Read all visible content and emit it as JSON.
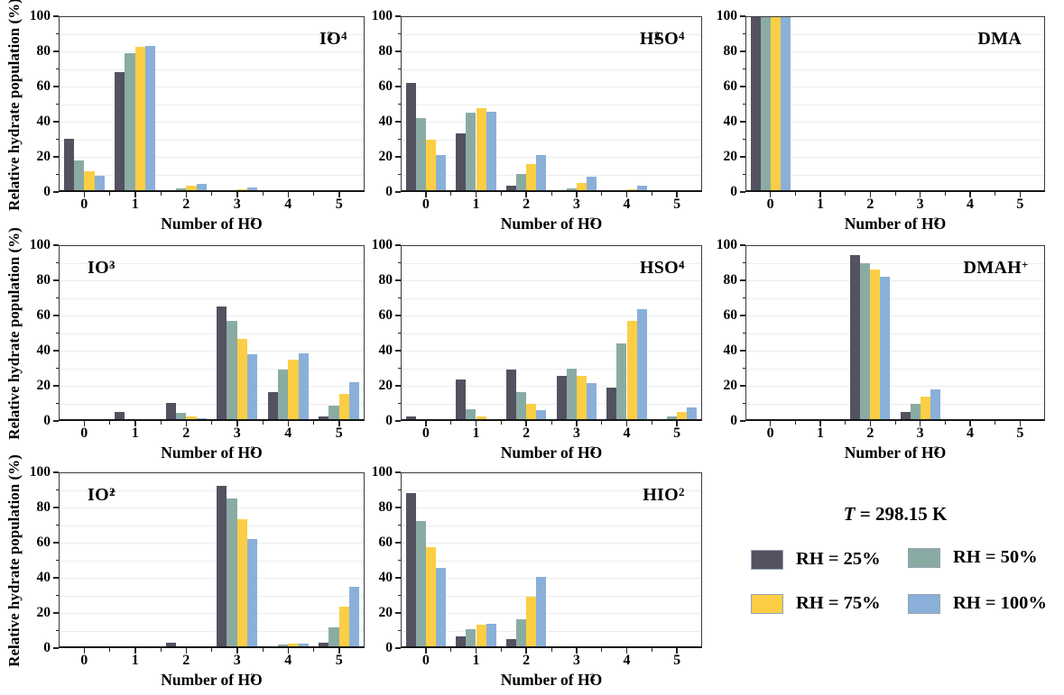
{
  "figure": {
    "ylabel": "Relative hydrate population (%)",
    "xlabel": {
      "pre": "Number of H",
      "sub": "2",
      "post": "O"
    },
    "temperature": {
      "symbol": "T",
      "rest": " = 298.15 K"
    },
    "y_ticks": [
      0,
      20,
      40,
      60,
      80,
      100
    ],
    "x_ticks": [
      "0",
      "1",
      "2",
      "3",
      "4",
      "5"
    ],
    "grid_color": "#ececec",
    "axis_color": "#3a3a3a",
    "legend": [
      {
        "label": "RH = 25%",
        "color": "#545161"
      },
      {
        "label": "RH = 50%",
        "color": "#8aaba4"
      },
      {
        "label": "RH = 75%",
        "color": "#fcce45"
      },
      {
        "label": "RH = 100%",
        "color": "#8ab0d9"
      }
    ]
  },
  "chart_data": [
    {
      "type": "bar",
      "title": "I2O4",
      "title_pos": "right",
      "title_parts": [
        {
          "t": "I"
        },
        {
          "t": "2",
          "s": "sub"
        },
        {
          "t": "O"
        },
        {
          "t": "4",
          "s": "sub"
        }
      ],
      "xlabel": "Number of H2O",
      "ylabel": "Relative hydrate population (%)",
      "categories": [
        0,
        1,
        2,
        3,
        4,
        5
      ],
      "ylim": [
        0,
        100
      ],
      "grid": true,
      "series": [
        {
          "name": "RH = 25%",
          "values": [
            30.5,
            68,
            1,
            0.3,
            0,
            0
          ]
        },
        {
          "name": "RH = 50%",
          "values": [
            18,
            79,
            2,
            0.5,
            0,
            0
          ]
        },
        {
          "name": "RH = 75%",
          "values": [
            12,
            82.5,
            3.5,
            1.5,
            0,
            0
          ]
        },
        {
          "name": "RH = 100%",
          "values": [
            9,
            83,
            4.5,
            2.5,
            0,
            0
          ]
        }
      ]
    },
    {
      "type": "bar",
      "title": "H2SO4",
      "title_pos": "right",
      "title_parts": [
        {
          "t": "H"
        },
        {
          "t": "2",
          "s": "sub"
        },
        {
          "t": "SO"
        },
        {
          "t": "4",
          "s": "sub"
        }
      ],
      "xlabel": "Number of H2O",
      "categories": [
        0,
        1,
        2,
        3,
        4,
        5
      ],
      "ylim": [
        0,
        100
      ],
      "grid": true,
      "series": [
        {
          "name": "RH = 25%",
          "values": [
            62,
            33.5,
            3.5,
            0.3,
            0,
            0
          ]
        },
        {
          "name": "RH = 50%",
          "values": [
            42,
            45,
            10.5,
            2,
            0.3,
            0
          ]
        },
        {
          "name": "RH = 75%",
          "values": [
            29.5,
            47.5,
            16,
            5,
            1.5,
            0
          ]
        },
        {
          "name": "RH = 100%",
          "values": [
            21,
            45.5,
            21,
            8.5,
            3.5,
            0
          ]
        }
      ]
    },
    {
      "type": "bar",
      "title": "DMA",
      "title_pos": "right",
      "title_parts": [
        {
          "t": "DMA"
        }
      ],
      "xlabel": "Number of H2O",
      "categories": [
        0,
        1,
        2,
        3,
        4,
        5
      ],
      "ylim": [
        0,
        100
      ],
      "grid": true,
      "series": [
        {
          "name": "RH = 25%",
          "values": [
            100,
            0,
            0,
            0,
            0,
            0
          ]
        },
        {
          "name": "RH = 50%",
          "values": [
            100,
            0.2,
            0,
            0,
            0,
            0
          ]
        },
        {
          "name": "RH = 75%",
          "values": [
            100,
            0.3,
            0,
            0,
            0,
            0
          ]
        },
        {
          "name": "RH = 100%",
          "values": [
            99.5,
            0.5,
            0,
            0,
            0,
            0
          ]
        }
      ]
    },
    {
      "type": "bar",
      "title": "IO3-",
      "title_pos": "left",
      "title_parts": [
        {
          "t": "IO"
        },
        {
          "t": "3",
          "s": "sub"
        },
        {
          "t": "-",
          "s": "sup"
        }
      ],
      "xlabel": "Number of H2O",
      "ylabel": "Relative hydrate population (%)",
      "categories": [
        0,
        1,
        2,
        3,
        4,
        5
      ],
      "ylim": [
        0,
        100
      ],
      "grid": true,
      "series": [
        {
          "name": "RH = 25%",
          "values": [
            0,
            5,
            10.5,
            65,
            16.5,
            2.5
          ]
        },
        {
          "name": "RH = 50%",
          "values": [
            0,
            1,
            4.5,
            57,
            29,
            8.5
          ]
        },
        {
          "name": "RH = 75%",
          "values": [
            0,
            0.3,
            2.5,
            46.5,
            35,
            15.5
          ]
        },
        {
          "name": "RH = 100%",
          "values": [
            0,
            0.2,
            1.5,
            38,
            38.5,
            22
          ]
        }
      ]
    },
    {
      "type": "bar",
      "title": "HSO4-",
      "title_pos": "right",
      "title_parts": [
        {
          "t": "HSO"
        },
        {
          "t": "4",
          "s": "sub"
        },
        {
          "t": "-",
          "s": "sup"
        }
      ],
      "xlabel": "Number of H2O",
      "categories": [
        0,
        1,
        2,
        3,
        4,
        5
      ],
      "ylim": [
        0,
        100
      ],
      "grid": true,
      "series": [
        {
          "name": "RH = 25%",
          "values": [
            2.5,
            23.5,
            29,
            25.5,
            19,
            0.5
          ]
        },
        {
          "name": "RH = 50%",
          "values": [
            0,
            6.5,
            16.5,
            29.5,
            44,
            2.5
          ]
        },
        {
          "name": "RH = 75%",
          "values": [
            0,
            2.5,
            9.5,
            25.5,
            57,
            5
          ]
        },
        {
          "name": "RH = 100%",
          "values": [
            0,
            1.2,
            6,
            21.5,
            63.5,
            7.5
          ]
        }
      ]
    },
    {
      "type": "bar",
      "title": "DMAH+",
      "title_pos": "right",
      "title_parts": [
        {
          "t": "DMAH"
        },
        {
          "t": "+",
          "s": "sup"
        }
      ],
      "xlabel": "Number of H2O",
      "categories": [
        0,
        1,
        2,
        3,
        4,
        5
      ],
      "ylim": [
        0,
        100
      ],
      "grid": true,
      "series": [
        {
          "name": "RH = 25%",
          "values": [
            0,
            0,
            94.5,
            5,
            0,
            0
          ]
        },
        {
          "name": "RH = 50%",
          "values": [
            0,
            0,
            90,
            10,
            0,
            0
          ]
        },
        {
          "name": "RH = 75%",
          "values": [
            0,
            0,
            86,
            14,
            0,
            0
          ]
        },
        {
          "name": "RH = 100%",
          "values": [
            0,
            0,
            82,
            18,
            0,
            0
          ]
        }
      ]
    },
    {
      "type": "bar",
      "title": "IO2+",
      "title_pos": "left",
      "title_parts": [
        {
          "t": "IO"
        },
        {
          "t": "2",
          "s": "sub"
        },
        {
          "t": "+",
          "s": "sup"
        }
      ],
      "xlabel": "Number of H2O",
      "ylabel": "Relative hydrate population (%)",
      "categories": [
        0,
        1,
        2,
        3,
        4,
        5
      ],
      "ylim": [
        0,
        100
      ],
      "grid": true,
      "series": [
        {
          "name": "RH = 25%",
          "values": [
            0,
            0,
            3,
            92.5,
            0.8,
            3.2
          ]
        },
        {
          "name": "RH = 50%",
          "values": [
            0,
            0,
            1,
            85,
            1.8,
            12
          ]
        },
        {
          "name": "RH = 75%",
          "values": [
            0,
            0,
            0.8,
            73.5,
            2.5,
            23.5
          ]
        },
        {
          "name": "RH = 100%",
          "values": [
            0,
            0,
            0.3,
            62,
            2.8,
            35
          ]
        }
      ]
    },
    {
      "type": "bar",
      "title": "HIO2",
      "title_pos": "right",
      "title_parts": [
        {
          "t": "HIO"
        },
        {
          "t": "2",
          "s": "sub"
        }
      ],
      "xlabel": "Number of H2O",
      "categories": [
        0,
        1,
        2,
        3,
        4,
        5
      ],
      "ylim": [
        0,
        100
      ],
      "grid": true,
      "series": [
        {
          "name": "RH = 25%",
          "values": [
            88,
            6.5,
            5,
            0,
            0,
            0
          ]
        },
        {
          "name": "RH = 50%",
          "values": [
            72.5,
            11,
            16.5,
            0,
            0,
            0
          ]
        },
        {
          "name": "RH = 75%",
          "values": [
            57.5,
            13.5,
            29,
            0,
            0,
            0
          ]
        },
        {
          "name": "RH = 100%",
          "values": [
            45.5,
            14,
            40.5,
            0,
            0,
            0
          ]
        }
      ]
    }
  ]
}
